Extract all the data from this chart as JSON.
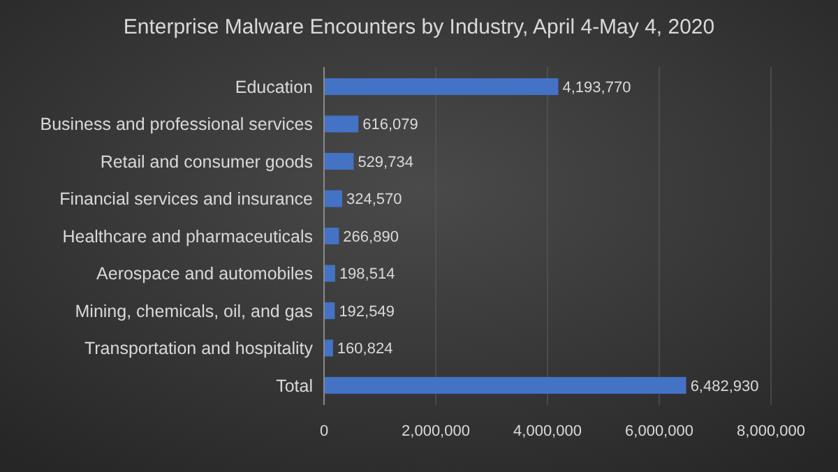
{
  "chart_data": {
    "type": "bar",
    "orientation": "horizontal",
    "title": "Enterprise Malware Encounters by Industry, April 4-May 4, 2020",
    "categories": [
      "Education",
      "Business and professional services",
      "Retail and consumer goods",
      "Financial services and insurance",
      "Healthcare and pharmaceuticals",
      "Aerospace and automobiles",
      "Mining, chemicals, oil, and gas",
      "Transportation and hospitality",
      "Total"
    ],
    "values": [
      4193770,
      616079,
      529734,
      324570,
      266890,
      198514,
      192549,
      160824,
      6482930
    ],
    "value_labels": [
      "4,193,770",
      "616,079",
      "529,734",
      "324,570",
      "266,890",
      "198,514",
      "192,549",
      "160,824",
      "6,482,930"
    ],
    "color": "#4472c4",
    "xlim": [
      0,
      8000000
    ],
    "xticks": [
      {
        "value": 0,
        "label": "0"
      },
      {
        "value": 2000000,
        "label": "2,000,000"
      },
      {
        "value": 4000000,
        "label": "4,000,000"
      },
      {
        "value": 6000000,
        "label": "6,000,000"
      },
      {
        "value": 8000000,
        "label": "8,000,000"
      }
    ],
    "grid": "x"
  }
}
